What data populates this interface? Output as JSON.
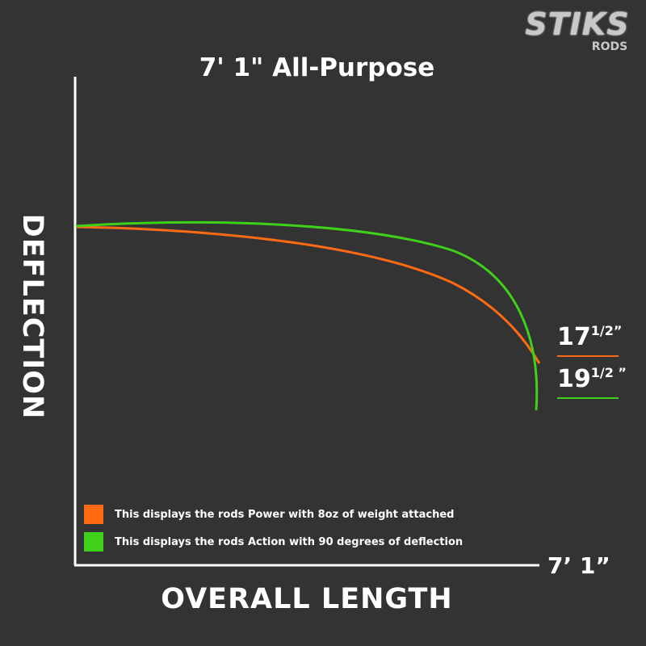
{
  "logo": {
    "text": "STIK5",
    "sub": "RODS"
  },
  "chart_data": {
    "type": "line",
    "title": "7' 1\"  All-Purpose",
    "xlabel": "OVERALL LENGTH",
    "ylabel": "DEFLECTION",
    "x_end_label": "7’ 1”",
    "series": [
      {
        "name": "This displays the rods Power with 8oz of weight attached",
        "color": "#ff6a13",
        "tip_deflection_label": "17",
        "tip_fraction": "1/2",
        "tip_unit": "”",
        "tip_deflection_in": 17.5
      },
      {
        "name": "This displays the rods Action with 90 degrees of deflection",
        "color": "#3fd11a",
        "tip_deflection_label": "19",
        "tip_fraction": "1/2",
        "tip_unit": " ”",
        "tip_deflection_in": 19.5
      }
    ],
    "grid": false,
    "legend": "bottom-left"
  }
}
